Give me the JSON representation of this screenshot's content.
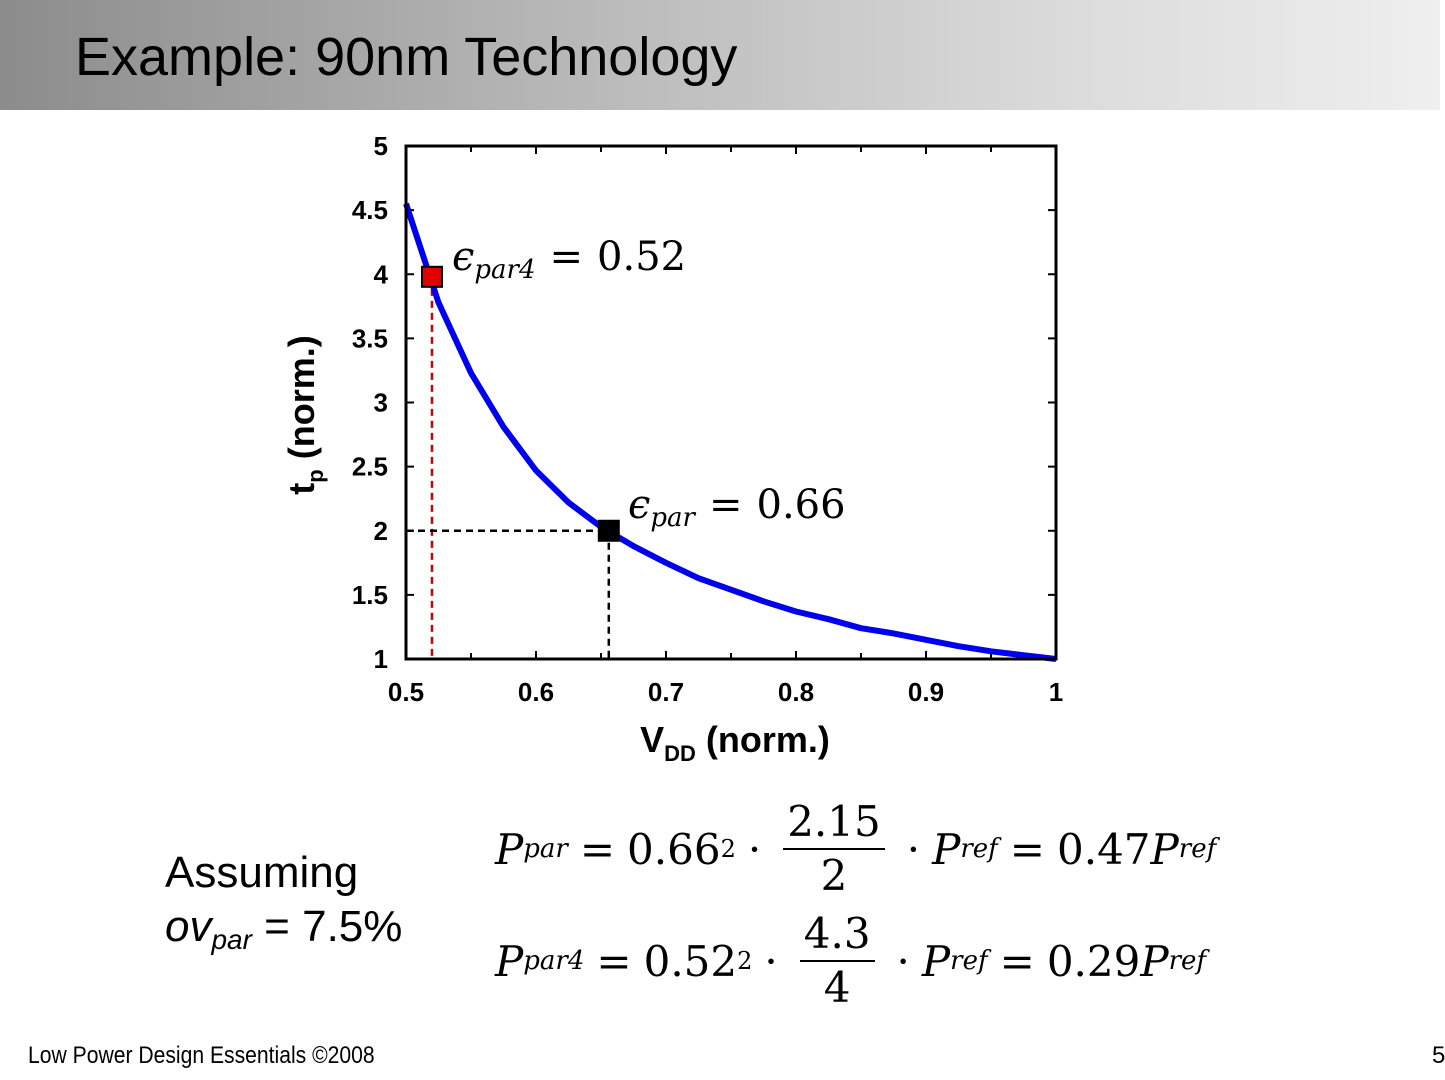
{
  "slide": {
    "title": "Example: 90nm Technology",
    "footer": "Low Power Design Essentials ©2008",
    "page_number": "5"
  },
  "assumption": {
    "line1": "Assuming",
    "ov": "ov",
    "ov_sub": "par",
    "ov_value": " = 7.5%"
  },
  "equations": [
    {
      "lhs": "P",
      "lhs_sub": "par",
      "eq1": "=",
      "factor": "0.66",
      "exp": "2",
      "dot1": "·",
      "num": "2.15",
      "den": "2",
      "dot2": "·",
      "p": "P",
      "p_sub": "ref",
      "eq2": "=",
      "result": "0.47",
      "rp": "P",
      "rp_sub": "ref"
    },
    {
      "lhs": "P",
      "lhs_sub": "par4",
      "eq1": "=",
      "factor": "0.52",
      "exp": "2",
      "dot1": "·",
      "num": "4.3",
      "den": "4",
      "dot2": "·",
      "p": "P",
      "p_sub": "ref",
      "eq2": "=",
      "result": "0.29",
      "rp": "P",
      "rp_sub": "ref"
    }
  ],
  "chart_data": {
    "type": "line",
    "xlabel": "V",
    "xlabel_sub": "DD",
    "xlabel_rest": " (norm.)",
    "ylabel": "t",
    "ylabel_sub": "p",
    "ylabel_rest": " (norm.)",
    "xlim": [
      0.5,
      1
    ],
    "ylim": [
      1,
      5
    ],
    "x_ticks": [
      0.5,
      0.6,
      0.7,
      0.8,
      0.9,
      1
    ],
    "x_tick_labels": [
      "0.5",
      "0.6",
      "0.7",
      "0.8",
      "0.9",
      "1"
    ],
    "y_ticks": [
      1,
      1.5,
      2,
      2.5,
      3,
      3.5,
      4,
      4.5,
      5
    ],
    "y_tick_labels": [
      "1",
      "1.5",
      "2",
      "2.5",
      "3",
      "3.5",
      "4",
      "4.5",
      "5"
    ],
    "grid": false,
    "series": [
      {
        "color": "#0000ee",
        "x": [
          0.5,
          0.525,
          0.55,
          0.575,
          0.6,
          0.625,
          0.65,
          0.675,
          0.7,
          0.725,
          0.75,
          0.775,
          0.8,
          0.825,
          0.85,
          0.875,
          0.9,
          0.925,
          0.95,
          0.975,
          1.0
        ],
        "y": [
          4.55,
          3.78,
          3.23,
          2.81,
          2.47,
          2.22,
          2.03,
          1.88,
          1.75,
          1.63,
          1.54,
          1.45,
          1.37,
          1.31,
          1.24,
          1.2,
          1.15,
          1.1,
          1.06,
          1.03,
          1.0
        ]
      }
    ],
    "markers": [
      {
        "x": 0.52,
        "y": 3.98,
        "color": "#e00000",
        "guide_color": "#cc0000"
      },
      {
        "x": 0.656,
        "y": 2.0,
        "color": "#000000",
        "guide_color": "#000000"
      }
    ],
    "annotations": [
      {
        "sym": "ϵ",
        "sub": "par4",
        "rel": "=",
        "value": "0.52"
      },
      {
        "sym": "ϵ",
        "sub": "par",
        "rel": "=",
        "value": "0.66"
      }
    ]
  }
}
